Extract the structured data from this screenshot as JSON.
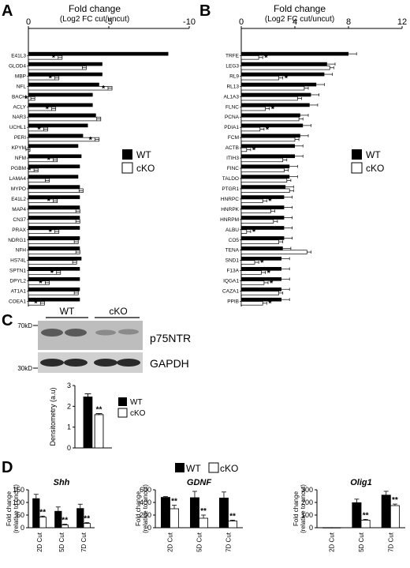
{
  "panel_labels": {
    "a": "A",
    "b": "B",
    "c": "C",
    "d": "D"
  },
  "legend": {
    "wt": "WT",
    "cko": "cKO"
  },
  "star": "*",
  "star2": "**",
  "chart_data": [
    {
      "id": "A",
      "type": "bar",
      "orientation": "horizontal",
      "title": "Fold change",
      "subtitle": "(Log2 FC cut/uncut)",
      "xticks": [
        "0",
        "-5",
        "-10"
      ],
      "xlim": [
        0,
        -10
      ],
      "categories": [
        "E41L3",
        "GLOD4",
        "MBP",
        "NFL",
        "BACH",
        "ACLY",
        "NAR3",
        "UCHL1",
        "PERI",
        "KPYM",
        "NFM",
        "PGBM",
        "LAMA4",
        "MYPO",
        "E41L2",
        "MAP4",
        "CN37",
        "PRAX",
        "NDRG1",
        "NFH",
        "HS74L",
        "SPTN1",
        "DPYL2",
        "AT1A1",
        "COEA1"
      ],
      "series": [
        {
          "name": "WT",
          "values": [
            -8.7,
            -4.6,
            -4.6,
            -4.4,
            -4.0,
            -4.0,
            -4.2,
            -3.7,
            -3.4,
            -3.1,
            -3.3,
            -3.2,
            -3.1,
            -3.2,
            -3.2,
            -3.2,
            -3.2,
            -3.2,
            -3.2,
            -3.2,
            -3.3,
            -3.2,
            -3.2,
            -3.2,
            -3.2
          ]
        },
        {
          "name": "cKO",
          "values": [
            -2.1,
            -3.6,
            -1.9,
            -5.2,
            -0.4,
            -1.7,
            -4.5,
            -1.2,
            -4.4,
            -0.1,
            -1.8,
            -0.6,
            -1.3,
            -3.4,
            -1.8,
            -3.2,
            -3.2,
            -1.9,
            -3.1,
            -3.2,
            -3.0,
            -2.0,
            -1.3,
            -3.1,
            -1.0
          ]
        }
      ],
      "significant_cKO": [
        true,
        false,
        true,
        true,
        true,
        true,
        false,
        true,
        true,
        false,
        true,
        true,
        false,
        false,
        true,
        false,
        false,
        true,
        false,
        false,
        false,
        true,
        true,
        false,
        true
      ]
    },
    {
      "id": "B",
      "type": "bar",
      "orientation": "horizontal",
      "title": "Fold change",
      "subtitle": "(Log2 FC cut/uncut)",
      "xticks": [
        "0",
        "4",
        "8",
        "12"
      ],
      "xlim": [
        0,
        12
      ],
      "categories": [
        "TRFE",
        "LEG3",
        "RL9",
        "RL13",
        "AL1A3",
        "FLNC",
        "PCNA",
        "PDIA1",
        "FCM",
        "ACTB",
        "ITIH3",
        "FINC",
        "TALDO",
        "PTGR1",
        "HNRPC",
        "HNRPK",
        "HNRPM",
        "ALBU",
        "CO5",
        "TENA",
        "SND1",
        "F13A",
        "IQGA1",
        "CAZA1",
        "PPIB"
      ],
      "series": [
        {
          "name": "WT",
          "values": [
            8.0,
            6.4,
            6.2,
            5.6,
            5.2,
            5.1,
            4.4,
            4.6,
            4.4,
            4.0,
            4.0,
            3.6,
            3.6,
            3.3,
            3.2,
            3.2,
            3.2,
            3.2,
            3.2,
            3.1,
            3.0,
            3.0,
            3.0,
            3.0,
            3.0
          ]
        },
        {
          "name": "cKO",
          "values": [
            1.3,
            6.6,
            2.8,
            4.7,
            4.2,
            1.8,
            4.3,
            1.4,
            4.0,
            0.4,
            3.1,
            3.2,
            3.4,
            3.6,
            1.6,
            2.2,
            2.4,
            0.4,
            2.8,
            4.9,
            1.0,
            1.5,
            1.7,
            2.8,
            1.6
          ]
        }
      ],
      "significant_cKO": [
        true,
        false,
        true,
        false,
        false,
        true,
        false,
        true,
        false,
        true,
        false,
        false,
        false,
        false,
        true,
        false,
        false,
        true,
        false,
        false,
        true,
        true,
        true,
        false,
        true
      ]
    },
    {
      "id": "C-blot",
      "type": "table",
      "groups": [
        "WT",
        "cKO"
      ],
      "markers": [
        "70kD",
        "30kD"
      ],
      "bands": [
        "p75NTR",
        "GAPDH"
      ]
    },
    {
      "id": "C-densitometry",
      "type": "bar",
      "categories": [
        "WT",
        "cKO"
      ],
      "values": [
        2.45,
        1.6
      ],
      "errors": [
        0.15,
        0.05
      ],
      "ylabel": "Densitometry (a.u)",
      "yticks": [
        "0",
        "1",
        "2",
        "3"
      ],
      "ylim": [
        0,
        3
      ],
      "annotation": "**"
    },
    {
      "id": "D-Shh",
      "type": "bar",
      "title": "Shh",
      "ylabel": "Fold change (relative to uncut)",
      "categories": [
        "2D Cut",
        "5D Cut",
        "7D Cut"
      ],
      "yticks": [
        "0",
        "50",
        "100",
        "150"
      ],
      "ylim": [
        0,
        150
      ],
      "series": [
        {
          "name": "WT",
          "values": [
            115,
            65,
            76
          ],
          "errors": [
            17,
            17,
            17
          ]
        },
        {
          "name": "cKO",
          "values": [
            42,
            11,
            17
          ],
          "errors": [
            4,
            3,
            3
          ]
        }
      ]
    },
    {
      "id": "D-GDNF",
      "type": "bar",
      "title": "GDNF",
      "ylabel": "Fold change (relative to uncut)",
      "categories": [
        "2D Cut",
        "5D Cut",
        "7D Cut"
      ],
      "yticks": [
        "0",
        "200",
        "400",
        "600"
      ],
      "ylim": [
        0,
        600
      ],
      "series": [
        {
          "name": "WT",
          "values": [
            480,
            475,
            470
          ],
          "errors": [
            12,
            100,
            95
          ]
        },
        {
          "name": "cKO",
          "values": [
            300,
            150,
            105
          ],
          "errors": [
            55,
            50,
            15
          ]
        }
      ]
    },
    {
      "id": "D-Olig1",
      "type": "bar",
      "title": "Olig1",
      "ylabel": "Fold change (relative to uncut)",
      "categories": [
        "2D Cut",
        "5D Cut",
        "7D Cut"
      ],
      "yticks": [
        "0",
        "100",
        "200",
        "300"
      ],
      "ylim": [
        0,
        300
      ],
      "series": [
        {
          "name": "WT",
          "values": [
            1,
            198,
            258
          ],
          "errors": [
            0,
            28,
            30
          ]
        },
        {
          "name": "cKO",
          "values": [
            1,
            60,
            175
          ],
          "errors": [
            0,
            6,
            12
          ]
        }
      ]
    }
  ]
}
